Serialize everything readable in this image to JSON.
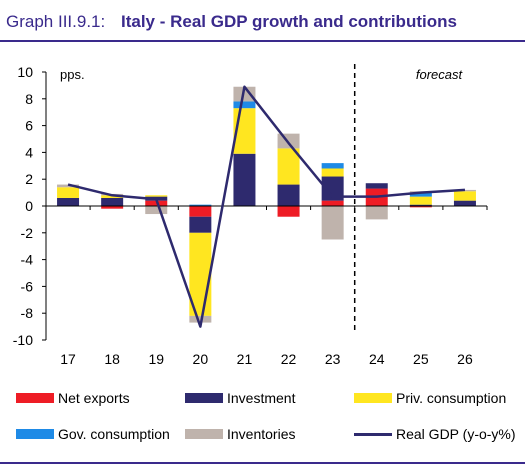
{
  "header": {
    "number": "Graph III.9.1:",
    "title": "Italy - Real GDP growth and contributions"
  },
  "chart_data": {
    "type": "bar",
    "subtype": "stacked-bar-with-line",
    "title": "Italy - Real GDP growth and contributions",
    "ylabel": "pps.",
    "annotation": "forecast",
    "forecast_from_category": "24",
    "categories": [
      "17",
      "18",
      "19",
      "20",
      "21",
      "22",
      "23",
      "24",
      "25",
      "26"
    ],
    "ylim": [
      -10,
      10
    ],
    "yticks": [
      10,
      8,
      6,
      4,
      2,
      0,
      -2,
      -4,
      -6,
      -8,
      -10
    ],
    "grid": false,
    "legend_position": "bottom",
    "series": [
      {
        "name": "Net exports",
        "color": "#ee1c25",
        "kind": "bar",
        "values": [
          0.0,
          -0.2,
          0.4,
          -0.8,
          0.0,
          -0.8,
          0.4,
          1.3,
          -0.1,
          0.0
        ]
      },
      {
        "name": "Investment",
        "color": "#2e2a6e",
        "kind": "bar",
        "values": [
          0.6,
          0.6,
          0.3,
          -1.2,
          3.9,
          1.6,
          1.8,
          0.4,
          0.1,
          0.4
        ]
      },
      {
        "name": "Priv. consumption",
        "color": "#ffe620",
        "kind": "bar",
        "values": [
          0.8,
          0.2,
          0.1,
          -6.2,
          3.4,
          2.7,
          0.6,
          0.0,
          0.6,
          0.7
        ]
      },
      {
        "name": "Gov. consumption",
        "color": "#1e8ae6",
        "kind": "bar",
        "values": [
          0.0,
          0.0,
          0.0,
          0.1,
          0.5,
          0.0,
          0.4,
          0.0,
          0.3,
          0.0
        ]
      },
      {
        "name": "Inventories",
        "color": "#bfb3ac",
        "kind": "bar",
        "values": [
          0.2,
          0.1,
          -0.6,
          -0.5,
          1.1,
          1.1,
          -2.5,
          -1.0,
          0.1,
          0.1
        ]
      },
      {
        "name": "Real GDP (y-o-y%)",
        "color": "#2e2a6e",
        "kind": "line",
        "values": [
          1.6,
          0.8,
          0.5,
          -9.0,
          8.9,
          4.7,
          0.7,
          0.7,
          1.0,
          1.2
        ]
      }
    ]
  },
  "legend": {
    "net_exports": "Net exports",
    "investment": "Investment",
    "priv_consumption": "Priv. consumption",
    "gov_consumption": "Gov. consumption",
    "inventories": "Inventories",
    "real_gdp": "Real GDP (y-o-y%)"
  },
  "colors": {
    "title": "#3a2a8c",
    "net_exports": "#ee1c25",
    "investment": "#2e2a6e",
    "priv_consumption": "#ffe620",
    "gov_consumption": "#1e8ae6",
    "inventories": "#bfb3ac",
    "real_gdp": "#2e2a6e"
  }
}
